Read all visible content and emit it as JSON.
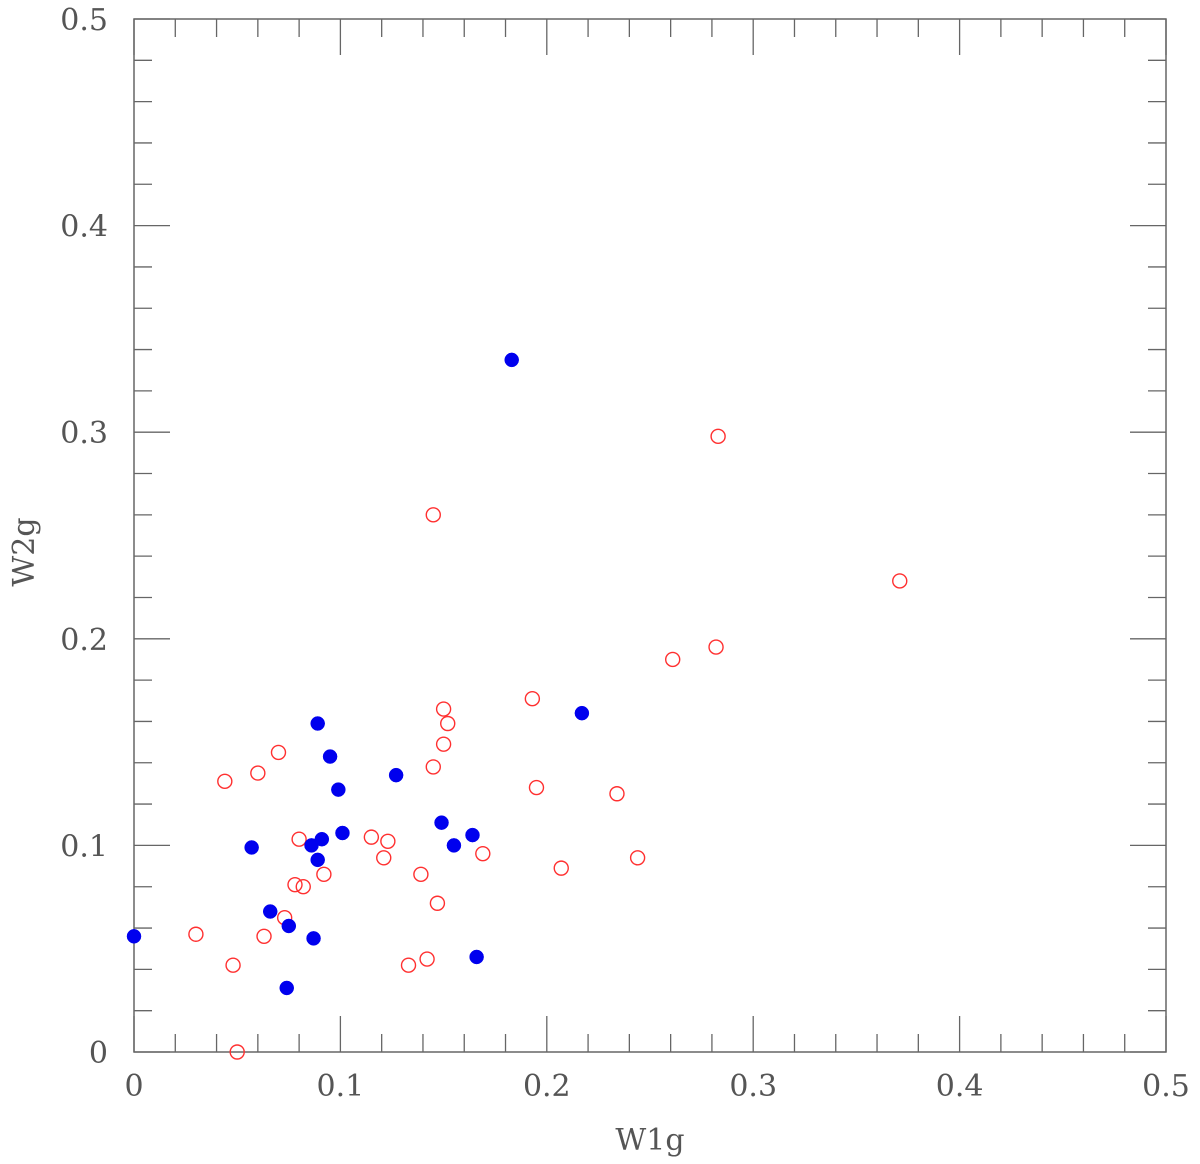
{
  "chart_data": {
    "type": "scatter",
    "xlabel": "W1g",
    "ylabel": "W2g",
    "xlim": [
      0,
      0.5
    ],
    "ylim": [
      0,
      0.5
    ],
    "x_ticks": [
      0,
      0.1,
      0.2,
      0.3,
      0.4,
      0.5
    ],
    "y_ticks": [
      0,
      0.1,
      0.2,
      0.3,
      0.4,
      0.5
    ],
    "x_tick_labels": [
      "0",
      "0.1",
      "0.2",
      "0.3",
      "0.4",
      "0.5"
    ],
    "y_tick_labels": [
      "0",
      "0.1",
      "0.2",
      "0.3",
      "0.4",
      "0.5"
    ],
    "grid": false,
    "series": [
      {
        "marker": "filled-circle",
        "color": "#0000ee",
        "points": [
          [
            0.0,
            0.056
          ],
          [
            0.057,
            0.099
          ],
          [
            0.066,
            0.068
          ],
          [
            0.074,
            0.031
          ],
          [
            0.075,
            0.061
          ],
          [
            0.086,
            0.1
          ],
          [
            0.087,
            0.055
          ],
          [
            0.089,
            0.093
          ],
          [
            0.089,
            0.159
          ],
          [
            0.091,
            0.103
          ],
          [
            0.095,
            0.143
          ],
          [
            0.099,
            0.127
          ],
          [
            0.101,
            0.106
          ],
          [
            0.127,
            0.134
          ],
          [
            0.149,
            0.111
          ],
          [
            0.155,
            0.1
          ],
          [
            0.164,
            0.105
          ],
          [
            0.166,
            0.046
          ],
          [
            0.183,
            0.335
          ],
          [
            0.217,
            0.164
          ]
        ]
      },
      {
        "marker": "open-circle",
        "color": "#ff3030",
        "points": [
          [
            0.03,
            0.057
          ],
          [
            0.044,
            0.131
          ],
          [
            0.048,
            0.042
          ],
          [
            0.05,
            0.0
          ],
          [
            0.06,
            0.135
          ],
          [
            0.063,
            0.056
          ],
          [
            0.07,
            0.145
          ],
          [
            0.073,
            0.065
          ],
          [
            0.078,
            0.081
          ],
          [
            0.08,
            0.103
          ],
          [
            0.082,
            0.08
          ],
          [
            0.092,
            0.086
          ],
          [
            0.115,
            0.104
          ],
          [
            0.121,
            0.094
          ],
          [
            0.123,
            0.102
          ],
          [
            0.133,
            0.042
          ],
          [
            0.139,
            0.086
          ],
          [
            0.142,
            0.045
          ],
          [
            0.145,
            0.138
          ],
          [
            0.145,
            0.26
          ],
          [
            0.147,
            0.072
          ],
          [
            0.15,
            0.149
          ],
          [
            0.15,
            0.166
          ],
          [
            0.152,
            0.159
          ],
          [
            0.169,
            0.096
          ],
          [
            0.193,
            0.171
          ],
          [
            0.195,
            0.128
          ],
          [
            0.207,
            0.089
          ],
          [
            0.234,
            0.125
          ],
          [
            0.244,
            0.094
          ],
          [
            0.261,
            0.19
          ],
          [
            0.282,
            0.196
          ],
          [
            0.283,
            0.298
          ],
          [
            0.371,
            0.228
          ]
        ]
      }
    ]
  }
}
